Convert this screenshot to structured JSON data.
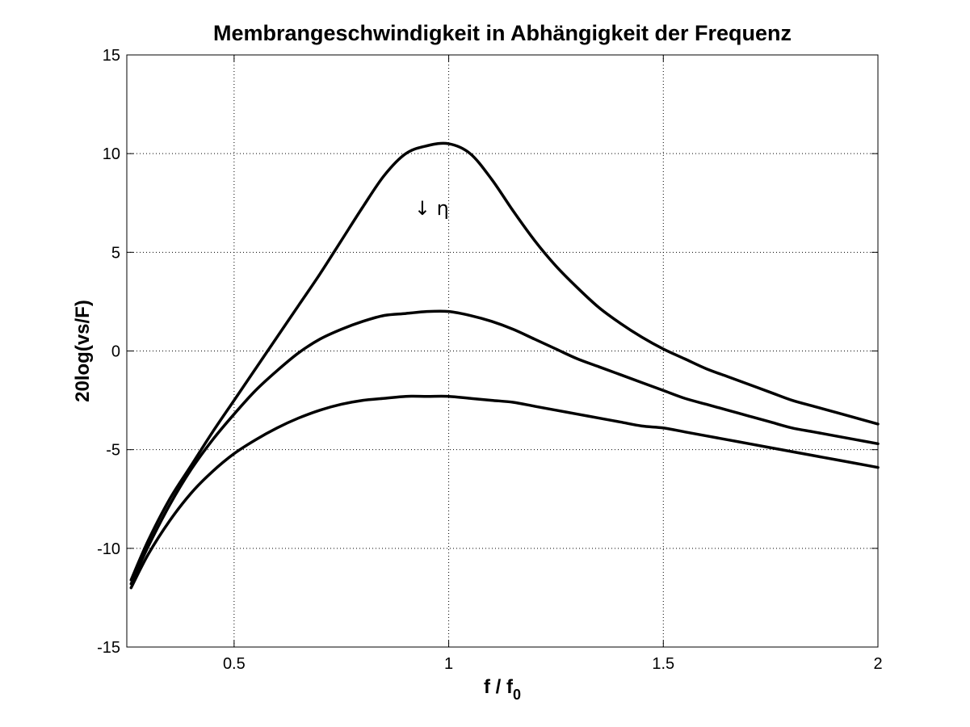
{
  "chart_data": {
    "type": "line",
    "title": "Membrangeschwindigkeit in Abhängigkeit der Frequenz",
    "xlabel": {
      "main": "f / f",
      "subscript": "0"
    },
    "ylabel": "20log(vs/F)",
    "xlim": [
      0.25,
      2
    ],
    "ylim": [
      -15,
      15
    ],
    "xticks": [
      0.5,
      1,
      1.5,
      2
    ],
    "xtick_labels": [
      "0.5",
      "1",
      "1.5",
      "2"
    ],
    "yticks": [
      -15,
      -10,
      -5,
      0,
      5,
      10,
      15
    ],
    "ytick_labels": [
      "-15",
      "-10",
      "-5",
      "0",
      "5",
      "10",
      "15"
    ],
    "grid": true,
    "grid_style": "dotted",
    "line_color": "#000000",
    "annotation": {
      "text": "↓ η",
      "x": 0.96,
      "y": 6.9
    },
    "series": [
      {
        "x": [
          0.26,
          0.3,
          0.35,
          0.4,
          0.45,
          0.5,
          0.55,
          0.6,
          0.65,
          0.7,
          0.75,
          0.8,
          0.85,
          0.9,
          0.95,
          1.0,
          1.05,
          1.1,
          1.15,
          1.2,
          1.25,
          1.3,
          1.35,
          1.4,
          1.45,
          1.5,
          1.55,
          1.6,
          1.65,
          1.7,
          1.75,
          1.8,
          1.85,
          1.9,
          1.95,
          2.0
        ],
        "values": [
          -11.6,
          -9.6,
          -7.5,
          -5.8,
          -4.1,
          -2.5,
          -0.9,
          0.7,
          2.3,
          3.9,
          5.6,
          7.3,
          8.9,
          10.0,
          10.4,
          10.5,
          10.0,
          8.7,
          7.1,
          5.6,
          4.3,
          3.2,
          2.2,
          1.4,
          0.7,
          0.1,
          -0.4,
          -0.9,
          -1.3,
          -1.7,
          -2.1,
          -2.5,
          -2.8,
          -3.1,
          -3.4,
          -3.7
        ]
      },
      {
        "x": [
          0.26,
          0.3,
          0.35,
          0.4,
          0.45,
          0.5,
          0.55,
          0.6,
          0.65,
          0.7,
          0.75,
          0.8,
          0.85,
          0.9,
          0.95,
          1.0,
          1.05,
          1.1,
          1.15,
          1.2,
          1.25,
          1.3,
          1.35,
          1.4,
          1.45,
          1.5,
          1.55,
          1.6,
          1.65,
          1.7,
          1.75,
          1.8,
          1.85,
          1.9,
          1.95,
          2.0
        ],
        "values": [
          -11.8,
          -9.9,
          -7.8,
          -6.0,
          -4.5,
          -3.2,
          -2.0,
          -1.0,
          -0.1,
          0.6,
          1.1,
          1.5,
          1.8,
          1.9,
          2.0,
          2.0,
          1.8,
          1.5,
          1.1,
          0.6,
          0.1,
          -0.4,
          -0.8,
          -1.2,
          -1.6,
          -2.0,
          -2.4,
          -2.7,
          -3.0,
          -3.3,
          -3.6,
          -3.9,
          -4.1,
          -4.3,
          -4.5,
          -4.7
        ]
      },
      {
        "x": [
          0.26,
          0.3,
          0.35,
          0.4,
          0.45,
          0.5,
          0.55,
          0.6,
          0.65,
          0.7,
          0.75,
          0.8,
          0.85,
          0.9,
          0.95,
          1.0,
          1.05,
          1.1,
          1.15,
          1.2,
          1.25,
          1.3,
          1.35,
          1.4,
          1.45,
          1.5,
          1.55,
          1.6,
          1.65,
          1.7,
          1.75,
          1.8,
          1.85,
          1.9,
          1.95,
          2.0
        ],
        "values": [
          -12.0,
          -10.3,
          -8.6,
          -7.2,
          -6.1,
          -5.2,
          -4.5,
          -3.9,
          -3.4,
          -3.0,
          -2.7,
          -2.5,
          -2.4,
          -2.3,
          -2.3,
          -2.3,
          -2.4,
          -2.5,
          -2.6,
          -2.8,
          -3.0,
          -3.2,
          -3.4,
          -3.6,
          -3.8,
          -3.9,
          -4.1,
          -4.3,
          -4.5,
          -4.7,
          -4.9,
          -5.1,
          -5.3,
          -5.5,
          -5.7,
          -5.9
        ]
      }
    ]
  }
}
